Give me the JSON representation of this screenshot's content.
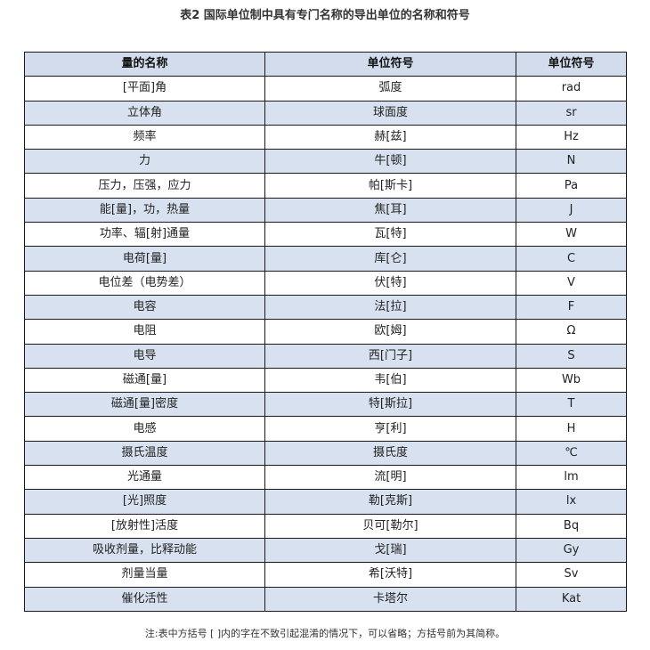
{
  "title": "表2 国际单位制中具有专门名称的导出单位的名称和符号",
  "table": {
    "headers": [
      "量的名称",
      "单位符号",
      "单位符号"
    ],
    "rows": [
      [
        "[平面]角",
        "弧度",
        "rad"
      ],
      [
        "立体角",
        "球面度",
        "sr"
      ],
      [
        "频率",
        "赫[兹]",
        "Hz"
      ],
      [
        "力",
        "牛[顿]",
        "N"
      ],
      [
        "压力，压强，应力",
        "帕[斯卡]",
        "Pa"
      ],
      [
        "能[量]，功，热量",
        "焦[耳]",
        "J"
      ],
      [
        "功率、辐[射]通量",
        "瓦[特]",
        "W"
      ],
      [
        "电荷[量]",
        "库[仑]",
        "C"
      ],
      [
        "电位差（电势差）",
        "伏[特]",
        "V"
      ],
      [
        "电容",
        "法[拉]",
        "F"
      ],
      [
        "电阻",
        "欧[姆]",
        "Ω"
      ],
      [
        "电导",
        "西[门子]",
        "S"
      ],
      [
        "磁通[量]",
        "韦[伯]",
        "Wb"
      ],
      [
        "磁通[量]密度",
        "特[斯拉]",
        "T"
      ],
      [
        "电感",
        "亨[利]",
        "H"
      ],
      [
        "摄氏温度",
        "摄氏度",
        "℃"
      ],
      [
        "光通量",
        "流[明]",
        "lm"
      ],
      [
        "[光]照度",
        "勒[克斯]",
        "lx"
      ],
      [
        "[放射性]活度",
        "贝可[勒尔]",
        "Bq"
      ],
      [
        "吸收剂量，比释动能",
        "戈[瑞]",
        "Gy"
      ],
      [
        "剂量当量",
        "希[沃特]",
        "Sv"
      ],
      [
        "催化活性",
        "卡塔尔",
        "Kat"
      ]
    ]
  },
  "note": "注:表中方括号 [ ]内的字在不致引起混淆的情况下，可以省略；方括号前为其简称。",
  "colors": {
    "header_bg": "#d2dcec",
    "stripe_bg": "#d8e1ef",
    "border": "#1a1a1a"
  }
}
